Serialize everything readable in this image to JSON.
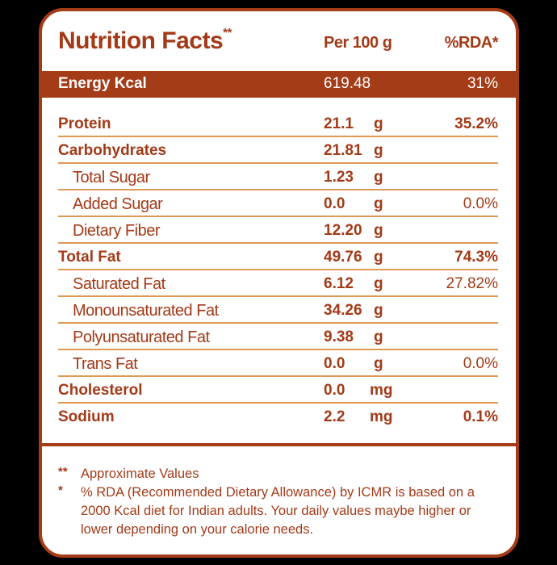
{
  "header": {
    "title": "Nutrition Facts",
    "title_mark": "**",
    "per_label": "Per 100 g",
    "rda_label": "%RDA*"
  },
  "energy": {
    "label": "Energy Kcal",
    "value": "619.48",
    "rda": "31%"
  },
  "rows": [
    {
      "name": "Protein",
      "amount": "21.1",
      "unit": "g",
      "rda": "35.2%"
    },
    {
      "name": "Carbohydrates",
      "amount": "21.81",
      "unit": "g",
      "rda": ""
    },
    {
      "name": "Total Sugar",
      "amount": "1.23",
      "unit": "g",
      "rda": ""
    },
    {
      "name": "Added Sugar",
      "amount": "0.0",
      "unit": "g",
      "rda": "0.0%"
    },
    {
      "name": "Dietary Fiber",
      "amount": "12.20",
      "unit": "g",
      "rda": ""
    },
    {
      "name": "Total Fat",
      "amount": "49.76",
      "unit": "g",
      "rda": "74.3%"
    },
    {
      "name": "Saturated Fat",
      "amount": "6.12",
      "unit": "g",
      "rda": "27.82%"
    },
    {
      "name": "Monounsaturated Fat",
      "amount": "34.26",
      "unit": "g",
      "rda": ""
    },
    {
      "name": "Polyunsaturated Fat",
      "amount": "9.38",
      "unit": "g",
      "rda": ""
    },
    {
      "name": "Trans Fat",
      "amount": "0.0",
      "unit": "g",
      "rda": "0.0%"
    },
    {
      "name": "Cholesterol",
      "amount": "0.0",
      "unit": "mg",
      "rda": ""
    },
    {
      "name": "Sodium",
      "amount": "2.2",
      "unit": "mg",
      "rda": "0.1%"
    }
  ],
  "notes": [
    {
      "mark": "**",
      "text": "Approximate Values"
    },
    {
      "mark": "*",
      "text": "% RDA (Recommended Dietary Allowance) by ICMR is based on a 2000 Kcal diet for Indian adults. Your daily values maybe higher or lower depending on your calorie needs."
    }
  ],
  "colors": {
    "brand": "#a43c18",
    "divider": "#dd9a55",
    "text": "#a33a17"
  }
}
